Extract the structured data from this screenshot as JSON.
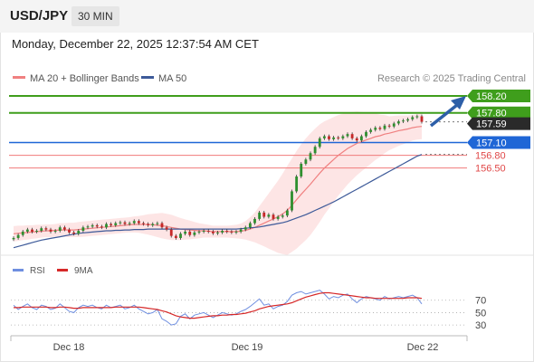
{
  "header": {
    "symbol": "USD/JPY",
    "interval": "30 MIN",
    "datetime": "Monday, December 22, 2025 12:37:54 AM CET"
  },
  "legend": {
    "ma20": "MA 20 + Bollinger Bands",
    "ma50": "MA 50",
    "credit": "Research © 2025 Trading Central"
  },
  "rsi_legend": {
    "rsi": "RSI",
    "ma": "9MA"
  },
  "colors": {
    "resistance": "#3f9e1c",
    "support_primary": "#1f66d6",
    "support_secondary": "#f07a7a",
    "current": "#2a2a2a",
    "ma20": "#f08080",
    "ma50": "#3d5a99",
    "band": "#fde0e0",
    "candle_up": "#2f8f2f",
    "candle_down": "#c62828",
    "rsi": "#6f8fe0",
    "rsi_ma": "#d62828",
    "arrow": "#2d5fa8"
  },
  "chart_data": {
    "type": "candlestick",
    "instrument": "USD/JPY",
    "timeframe": "30 MIN",
    "price_axis_range": [
      154.6,
      158.3
    ],
    "x_labels": [
      "Dec 18",
      "Dec 19",
      "Dec 22"
    ],
    "price_levels": [
      {
        "type": "resistance",
        "value": 158.2,
        "label": "158.20"
      },
      {
        "type": "resistance",
        "value": 157.8,
        "label": "157.80"
      },
      {
        "type": "current",
        "value": 157.59,
        "label": "157.59"
      },
      {
        "type": "pivot",
        "value": 157.1,
        "label": "157.10"
      },
      {
        "type": "support",
        "value": 156.8,
        "label": "156.80"
      },
      {
        "type": "support",
        "value": 156.5,
        "label": "156.50"
      }
    ],
    "close_series": [
      154.85,
      154.92,
      155.0,
      155.05,
      155.0,
      155.02,
      155.08,
      155.05,
      155.0,
      155.02,
      155.1,
      155.05,
      154.98,
      154.95,
      155.02,
      155.1,
      155.12,
      155.15,
      155.12,
      155.1,
      155.18,
      155.15,
      155.2,
      155.22,
      155.18,
      155.2,
      155.25,
      155.2,
      155.18,
      155.15,
      155.18,
      155.2,
      155.1,
      155.05,
      154.9,
      154.85,
      154.95,
      155.0,
      154.92,
      154.98,
      155.0,
      155.02,
      155.0,
      154.96,
      154.98,
      155.02,
      155.0,
      154.98,
      155.0,
      155.05,
      155.1,
      155.2,
      155.3,
      155.45,
      155.35,
      155.4,
      155.3,
      155.35,
      155.38,
      155.5,
      155.95,
      156.3,
      156.6,
      156.7,
      156.85,
      157.0,
      157.2,
      157.25,
      157.18,
      157.22,
      157.2,
      157.25,
      157.3,
      157.2,
      157.15,
      157.25,
      157.35,
      157.4,
      157.45,
      157.42,
      157.5,
      157.48,
      157.55,
      157.6,
      157.62,
      157.65,
      157.7,
      157.72,
      157.59
    ],
    "ma20_series": [
      154.95,
      154.96,
      154.97,
      154.98,
      154.99,
      155.0,
      155.01,
      155.02,
      155.02,
      155.03,
      155.04,
      155.04,
      155.04,
      155.04,
      155.05,
      155.06,
      155.07,
      155.08,
      155.09,
      155.1,
      155.11,
      155.12,
      155.13,
      155.14,
      155.15,
      155.16,
      155.17,
      155.17,
      155.17,
      155.17,
      155.16,
      155.15,
      155.14,
      155.12,
      155.1,
      155.08,
      155.06,
      155.05,
      155.04,
      155.03,
      155.02,
      155.02,
      155.01,
      155.0,
      155.0,
      155.0,
      155.0,
      155.0,
      155.0,
      155.01,
      155.03,
      155.06,
      155.1,
      155.15,
      155.2,
      155.25,
      155.3,
      155.35,
      155.42,
      155.5,
      155.62,
      155.75,
      155.88,
      156.0,
      156.12,
      156.25,
      156.38,
      156.5,
      156.6,
      156.7,
      156.8,
      156.88,
      156.96,
      157.02,
      157.08,
      157.12,
      157.16,
      157.2,
      157.24,
      157.26,
      157.3,
      157.32,
      157.35,
      157.38,
      157.4,
      157.42,
      157.45,
      157.47,
      157.48
    ],
    "ma50_series": [
      154.62,
      154.65,
      154.68,
      154.71,
      154.74,
      154.77,
      154.8,
      154.82,
      154.84,
      154.86,
      154.88,
      154.9,
      154.92,
      154.94,
      154.96,
      154.97,
      154.98,
      154.99,
      155.0,
      155.01,
      155.02,
      155.02,
      155.03,
      155.03,
      155.04,
      155.04,
      155.05,
      155.05,
      155.05,
      155.06,
      155.06,
      155.06,
      155.06,
      155.06,
      155.06,
      155.06,
      155.06,
      155.06,
      155.06,
      155.06,
      155.06,
      155.06,
      155.06,
      155.06,
      155.06,
      155.06,
      155.06,
      155.06,
      155.06,
      155.07,
      155.08,
      155.09,
      155.1,
      155.11,
      155.13,
      155.15,
      155.17,
      155.19,
      155.21,
      155.24,
      155.28,
      155.32,
      155.36,
      155.4,
      155.45,
      155.5,
      155.55,
      155.6,
      155.65,
      155.7,
      155.76,
      155.82,
      155.88,
      155.94,
      156.0,
      156.06,
      156.12,
      156.18,
      156.24,
      156.3,
      156.36,
      156.42,
      156.48,
      156.54,
      156.6,
      156.66,
      156.72,
      156.78,
      156.82
    ],
    "band_width": [
      0.18,
      0.18,
      0.17,
      0.17,
      0.16,
      0.16,
      0.15,
      0.15,
      0.15,
      0.15,
      0.16,
      0.16,
      0.17,
      0.17,
      0.18,
      0.18,
      0.18,
      0.18,
      0.18,
      0.18,
      0.18,
      0.18,
      0.18,
      0.18,
      0.18,
      0.18,
      0.19,
      0.2,
      0.22,
      0.24,
      0.26,
      0.28,
      0.3,
      0.3,
      0.3,
      0.28,
      0.26,
      0.24,
      0.22,
      0.2,
      0.18,
      0.16,
      0.15,
      0.14,
      0.14,
      0.14,
      0.14,
      0.15,
      0.16,
      0.18,
      0.22,
      0.28,
      0.35,
      0.45,
      0.55,
      0.65,
      0.75,
      0.85,
      0.95,
      1.05,
      1.1,
      1.15,
      1.18,
      1.2,
      1.2,
      1.18,
      1.15,
      1.1,
      1.05,
      1.0,
      0.95,
      0.9,
      0.85,
      0.8,
      0.75,
      0.7,
      0.65,
      0.6,
      0.55,
      0.5,
      0.45,
      0.4,
      0.38,
      0.36,
      0.34,
      0.32,
      0.3,
      0.3,
      0.3
    ],
    "rsi_panel": {
      "levels": [
        70,
        50,
        30
      ],
      "range": [
        20,
        90
      ],
      "rsi_series": [
        62,
        55,
        60,
        64,
        58,
        55,
        62,
        60,
        55,
        57,
        64,
        58,
        52,
        50,
        58,
        62,
        60,
        62,
        58,
        56,
        62,
        58,
        60,
        62,
        56,
        58,
        62,
        56,
        52,
        48,
        50,
        55,
        40,
        36,
        30,
        32,
        44,
        48,
        40,
        46,
        48,
        50,
        46,
        42,
        46,
        50,
        48,
        46,
        48,
        52,
        55,
        60,
        66,
        72,
        62,
        64,
        56,
        60,
        62,
        68,
        78,
        82,
        84,
        80,
        82,
        84,
        86,
        80,
        72,
        76,
        74,
        78,
        80,
        72,
        66,
        72,
        76,
        74,
        72,
        70,
        76,
        72,
        74,
        76,
        74,
        76,
        78,
        74,
        64
      ],
      "rsi_ma_series": [
        58,
        58,
        59,
        59,
        59,
        59,
        59,
        59,
        58,
        58,
        59,
        59,
        58,
        57,
        57,
        58,
        58,
        58,
        58,
        58,
        58,
        58,
        59,
        59,
        59,
        59,
        59,
        59,
        58,
        57,
        56,
        55,
        53,
        51,
        48,
        45,
        43,
        42,
        41,
        41,
        42,
        43,
        44,
        45,
        45,
        46,
        46,
        47,
        47,
        48,
        49,
        51,
        53,
        56,
        58,
        60,
        61,
        62,
        63,
        64,
        66,
        69,
        72,
        75,
        77,
        79,
        81,
        82,
        82,
        81,
        80,
        79,
        78,
        77,
        76,
        75,
        74,
        74,
        73,
        73,
        73,
        73,
        73,
        73,
        73,
        74,
        74,
        74,
        73
      ]
    }
  }
}
